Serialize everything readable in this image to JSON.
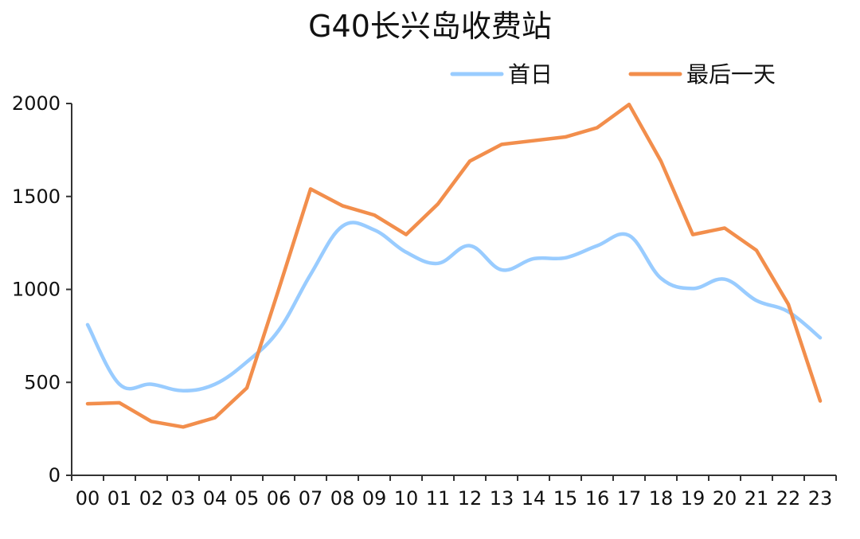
{
  "chart_data": {
    "type": "line",
    "title": "G40长兴岛收费站",
    "xlabel": "",
    "ylabel": "",
    "categories": [
      "00",
      "01",
      "02",
      "03",
      "04",
      "05",
      "06",
      "07",
      "08",
      "09",
      "10",
      "11",
      "12",
      "13",
      "14",
      "15",
      "16",
      "17",
      "18",
      "19",
      "20",
      "21",
      "22",
      "23"
    ],
    "ylim": [
      0,
      2000
    ],
    "yticks": [
      "0",
      "500",
      "1000",
      "1500",
      "2000"
    ],
    "grid": false,
    "legend_position": "top-right",
    "series": [
      {
        "name": "首日",
        "color": "#99CCFF",
        "smooth": true,
        "values": [
          810,
          490,
          490,
          455,
          490,
          610,
          780,
          1080,
          1340,
          1320,
          1200,
          1140,
          1235,
          1105,
          1165,
          1170,
          1235,
          1290,
          1060,
          1005,
          1055,
          940,
          880,
          740
        ]
      },
      {
        "name": "最后一天",
        "color": "#F28E4C",
        "smooth": false,
        "values": [
          385,
          390,
          290,
          260,
          310,
          470,
          1000,
          1540,
          1450,
          1400,
          1295,
          1460,
          1690,
          1780,
          1800,
          1820,
          1870,
          1995,
          1690,
          1295,
          1330,
          1210,
          920,
          400
        ]
      }
    ]
  }
}
